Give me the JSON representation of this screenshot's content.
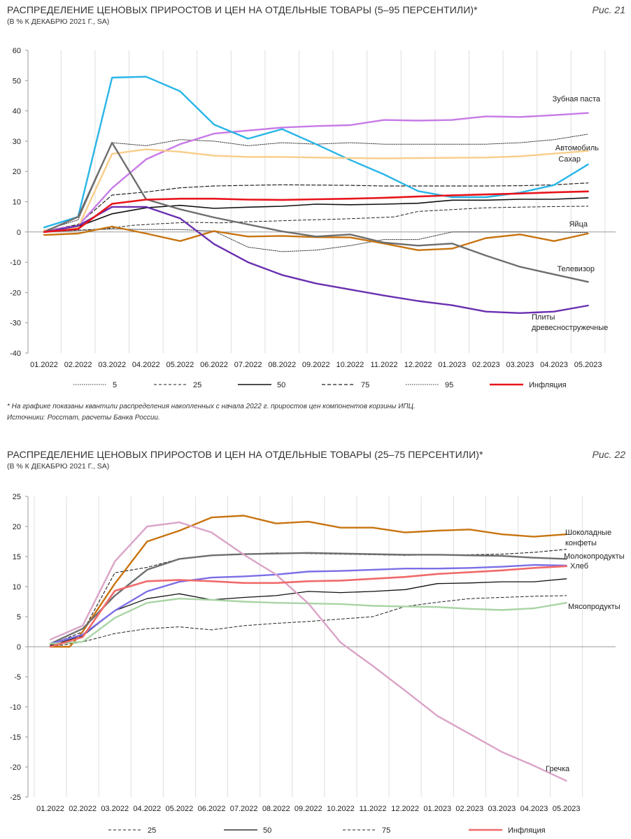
{
  "charts": [
    {
      "title": "РАСПРЕДЕЛЕНИЕ ЦЕНОВЫХ ПРИРОСТОВ И ЦЕН НА ОТДЕЛЬНЫЕ ТОВАРЫ (5–95 ПЕРСЕНТИЛИ)*",
      "subtitle": "(В % К ДЕКАБРЮ 2021 Г., SA)",
      "figure_label": "Рис. 21"
    },
    {
      "title": "РАСПРЕДЕЛЕНИЕ ЦЕНОВЫХ ПРИРОСТОВ И ЦЕН НА ОТДЕЛЬНЫЕ ТОВАРЫ (25–75 ПЕРСЕНТИЛИ)*",
      "subtitle": "(В % К ДЕКАБРЮ 2021 Г., SA)",
      "figure_label": "Рис. 22"
    }
  ],
  "footnote": "* На графике показаны квантили распределения накопленных с начала 2022 г. приростов цен компонентов корзины ИПЦ.",
  "source": "Источники: Росстат, расчеты Банка России.",
  "chart_data": [
    {
      "type": "line",
      "title": "РАСПРЕДЕЛЕНИЕ ЦЕНОВЫХ ПРИРОСТОВ И ЦЕН НА ОТДЕЛЬНЫЕ ТОВАРЫ (5–95 ПЕРСЕНТИЛИ)*",
      "xlabel": "",
      "ylabel": "",
      "ylim": [
        -40,
        60
      ],
      "yticks": [
        -40,
        -30,
        -20,
        -10,
        0,
        10,
        20,
        30,
        40,
        50,
        60
      ],
      "categories": [
        "01.2022",
        "02.2022",
        "03.2022",
        "04.2022",
        "05.2022",
        "06.2022",
        "07.2022",
        "08.2022",
        "09.2022",
        "10.2022",
        "11.2022",
        "12.2022",
        "01.2023",
        "02.2023",
        "03.2023",
        "04.2023",
        "05.2023"
      ],
      "x": [
        0.0,
        1.0,
        2.0,
        3.0,
        4.0,
        5.0,
        6.0,
        7.0,
        8.0,
        9.0,
        10.0,
        11.0,
        12.0,
        13.0,
        14.0,
        15.0,
        16.0
      ],
      "series": [
        {
          "name": "5",
          "legend": true,
          "color": "#333333",
          "width": 1.0,
          "dash": "1.5 1.5",
          "values": [
            0.0,
            0.5,
            1.0,
            0.8,
            0.8,
            0.3,
            -5.0,
            -6.5,
            -6.0,
            -4.5,
            -2.5,
            -2.5,
            0.0,
            0.0,
            0.0,
            0.0,
            -0.2
          ]
        },
        {
          "name": "25",
          "legend": true,
          "color": "#222222",
          "width": 1.0,
          "dash": "4 3",
          "x": [
            0.0,
            1.0,
            1.8,
            2.6,
            3.5,
            4.3,
            5.2,
            6.0,
            6.7,
            7.5,
            8.5,
            9.5,
            10.3,
            11.0,
            12.0,
            13.0,
            14.0,
            15.0,
            16.0
          ],
          "values": [
            0.0,
            0.6,
            1.0,
            2.2,
            2.8,
            3.2,
            3.0,
            3.4,
            3.6,
            3.9,
            4.2,
            4.6,
            5.0,
            6.8,
            7.4,
            8.0,
            8.2,
            8.4,
            8.5
          ]
        },
        {
          "name": "50",
          "legend": true,
          "color": "#111111",
          "width": 1.6,
          "values": [
            0.2,
            1.8,
            6.0,
            8.0,
            8.8,
            7.8,
            8.2,
            8.5,
            9.2,
            9.0,
            9.2,
            9.5,
            10.5,
            10.5,
            10.8,
            10.8,
            11.3
          ]
        },
        {
          "name": "75",
          "legend": true,
          "color": "#222222",
          "width": 1.2,
          "dash": "5 3",
          "values": [
            0.3,
            2.5,
            12.2,
            13.2,
            14.6,
            15.2,
            15.4,
            15.6,
            15.5,
            15.4,
            15.2,
            15.2,
            15.2,
            15.2,
            15.3,
            15.6,
            16.2
          ]
        },
        {
          "name": "95",
          "legend": true,
          "color": "#333333",
          "width": 1.0,
          "dash": "1.5 1.5",
          "values": [
            0.5,
            4.0,
            29.5,
            28.5,
            30.5,
            30.0,
            28.5,
            29.5,
            29.0,
            29.5,
            29.0,
            29.0,
            29.0,
            29.0,
            29.5,
            30.5,
            32.3
          ]
        },
        {
          "name": "Зубная паста",
          "legend": false,
          "color": "#c77ae6",
          "width": 2.4,
          "values": [
            0.5,
            2.0,
            14.5,
            24.0,
            29.0,
            32.5,
            33.5,
            34.5,
            35.0,
            35.3,
            37.0,
            36.8,
            37.0,
            38.2,
            38.0,
            38.6,
            39.3
          ],
          "label": "Зубная паста"
        },
        {
          "name": "Автомобиль",
          "legend": false,
          "color": "#29b5e8",
          "width": 2.4,
          "values": [
            1.5,
            5.0,
            51.0,
            51.3,
            46.5,
            35.5,
            30.8,
            34.0,
            29.0,
            23.8,
            19.0,
            13.5,
            11.5,
            11.5,
            13.0,
            15.5,
            22.3
          ],
          "label": "Автомобиль"
        },
        {
          "name": "Сахар",
          "legend": false,
          "color": "#f8cd8a",
          "width": 2.4,
          "values": [
            0.5,
            1.5,
            25.8,
            27.3,
            26.5,
            25.2,
            24.8,
            24.8,
            24.6,
            24.4,
            24.3,
            24.4,
            24.5,
            24.6,
            25.0,
            25.9,
            26.8
          ],
          "label": "Сахар"
        },
        {
          "name": "Яйца",
          "legend": false,
          "color": "#c87410",
          "width": 2.4,
          "values": [
            -1.0,
            -0.5,
            1.8,
            -0.5,
            -3.0,
            0.3,
            -1.5,
            -1.3,
            -1.7,
            -1.8,
            -3.8,
            -6.0,
            -5.5,
            -2.0,
            -0.8,
            -3.0,
            -0.5
          ],
          "label": "Яйца"
        },
        {
          "name": "Телевизор",
          "legend": false,
          "color": "#6e6e6e",
          "width": 2.4,
          "values": [
            0.0,
            5.0,
            29.5,
            10.8,
            7.5,
            4.8,
            2.5,
            0.2,
            -1.5,
            -0.8,
            -3.5,
            -4.5,
            -3.8,
            -7.8,
            -11.5,
            -14.0,
            -16.5
          ],
          "label": "Телевизор"
        },
        {
          "name": "Плиты древесностружечные",
          "legend": false,
          "color": "#6a2fb0",
          "width": 2.4,
          "values": [
            0.0,
            2.0,
            8.3,
            8.3,
            4.5,
            -4.0,
            -10.0,
            -14.2,
            -17.0,
            -19.0,
            -21.0,
            -22.8,
            -24.2,
            -26.3,
            -26.8,
            -26.3,
            -24.3
          ],
          "label": "Плиты\nдревесностружечные"
        },
        {
          "name": "Инфляция",
          "legend": true,
          "color": "#e8141b",
          "width": 2.6,
          "values": [
            0.0,
            1.0,
            9.3,
            10.7,
            11.0,
            11.0,
            10.7,
            10.6,
            10.8,
            11.0,
            11.3,
            11.7,
            12.1,
            12.4,
            12.7,
            13.1,
            13.4
          ]
        }
      ]
    },
    {
      "type": "line",
      "title": "РАСПРЕДЕЛЕНИЕ ЦЕНОВЫХ ПРИРОСТОВ И ЦЕН НА ОТДЕЛЬНЫЕ ТОВАРЫ (25–75 ПЕРСЕНТИЛИ)*",
      "xlabel": "",
      "ylabel": "",
      "ylim": [
        -25,
        25
      ],
      "yticks": [
        -25,
        -20,
        -15,
        -10,
        -5,
        0,
        5,
        10,
        15,
        20,
        25
      ],
      "categories": [
        "01.2022",
        "02.2022",
        "03.2022",
        "04.2022",
        "05.2022",
        "06.2022",
        "07.2022",
        "08.2022",
        "09.2022",
        "10.2022",
        "11.2022",
        "12.2022",
        "01.2023",
        "02.2023",
        "03.2023",
        "04.2023",
        "05.2023"
      ],
      "x": [
        0.0,
        1.0,
        2.0,
        3.0,
        4.0,
        5.0,
        6.0,
        7.0,
        8.0,
        9.0,
        10.0,
        11.0,
        12.0,
        13.0,
        14.0,
        15.0,
        16.0
      ],
      "series": [
        {
          "name": "25",
          "legend": true,
          "color": "#222222",
          "width": 1.0,
          "dash": "4 3",
          "values": [
            0.0,
            0.8,
            2.2,
            3.0,
            3.3,
            2.8,
            3.5,
            3.9,
            4.2,
            4.6,
            5.0,
            6.7,
            7.4,
            8.0,
            8.2,
            8.4,
            8.5
          ]
        },
        {
          "name": "50",
          "legend": true,
          "color": "#111111",
          "width": 1.3,
          "values": [
            0.2,
            1.8,
            6.0,
            8.0,
            8.8,
            7.8,
            8.2,
            8.5,
            9.2,
            9.0,
            9.2,
            9.5,
            10.5,
            10.6,
            10.8,
            10.8,
            11.3
          ]
        },
        {
          "name": "75",
          "legend": true,
          "color": "#222222",
          "width": 1.1,
          "dash": "4 3",
          "values": [
            0.3,
            2.5,
            12.3,
            13.2,
            14.6,
            15.2,
            15.4,
            15.6,
            15.5,
            15.4,
            15.3,
            15.2,
            15.3,
            15.3,
            15.4,
            15.7,
            16.2
          ]
        },
        {
          "name": "Шоколадные конфеты",
          "legend": false,
          "color": "#c87410",
          "width": 2.4,
          "x": [
            0.0,
            0.6,
            1.0,
            2.0,
            3.0,
            4.0,
            5.0,
            6.0,
            7.0,
            8.0,
            9.0,
            10.0,
            11.0,
            12.0,
            13.0,
            14.0,
            15.0,
            16.0
          ],
          "values": [
            0.0,
            0.0,
            2.5,
            10.5,
            17.5,
            19.3,
            21.5,
            21.8,
            20.5,
            20.8,
            19.8,
            19.8,
            19.0,
            19.3,
            19.5,
            18.7,
            18.3,
            18.7
          ],
          "label": "Шоколадные\nконфеты"
        },
        {
          "name": "Молокопродукты",
          "legend": false,
          "color": "#6e6e6e",
          "width": 2.4,
          "values": [
            0.5,
            3.0,
            8.5,
            12.8,
            14.6,
            15.2,
            15.4,
            15.5,
            15.6,
            15.5,
            15.4,
            15.3,
            15.3,
            15.2,
            15.1,
            14.8,
            14.6
          ],
          "label": "Молокопродукты"
        },
        {
          "name": "Хлеб",
          "legend": false,
          "color": "#7b6ee6",
          "width": 2.4,
          "values": [
            0.5,
            2.0,
            6.0,
            9.2,
            10.8,
            11.5,
            11.7,
            12.0,
            12.5,
            12.6,
            12.8,
            13.0,
            13.0,
            13.1,
            13.3,
            13.6,
            13.5
          ],
          "label": "Хлеб"
        },
        {
          "name": "Мясопродукты",
          "legend": false,
          "color": "#a8d4a4",
          "width": 2.4,
          "values": [
            0.5,
            0.8,
            4.8,
            7.3,
            8.0,
            7.8,
            7.5,
            7.3,
            7.2,
            7.1,
            6.8,
            6.7,
            6.6,
            6.3,
            6.1,
            6.4,
            7.3
          ],
          "label": "Мясопродукты"
        },
        {
          "name": "Гречка",
          "legend": false,
          "color": "#dba3c7",
          "width": 2.4,
          "values": [
            1.2,
            3.5,
            14.2,
            20.0,
            20.7,
            19.0,
            15.3,
            12.0,
            7.2,
            0.7,
            -3.2,
            -7.3,
            -11.5,
            -14.5,
            -17.5,
            -19.8,
            -22.3
          ],
          "label": "Гречка"
        },
        {
          "name": "Инфляция",
          "legend": true,
          "color": "#f06a6a",
          "width": 2.6,
          "values": [
            0.0,
            1.6,
            9.3,
            10.9,
            11.1,
            10.9,
            10.6,
            10.6,
            10.9,
            11.0,
            11.3,
            11.6,
            12.1,
            12.4,
            12.7,
            13.1,
            13.4
          ]
        }
      ]
    }
  ]
}
